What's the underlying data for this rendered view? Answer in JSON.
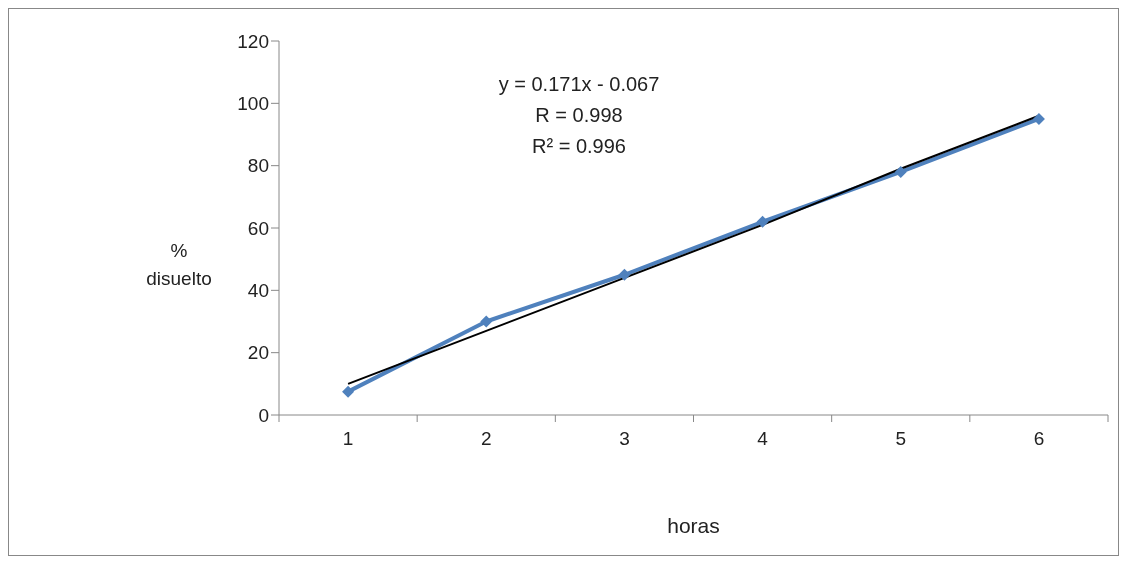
{
  "chart_data": {
    "type": "line",
    "xlabel": "horas",
    "ylabel": "%\ndisuelto",
    "annotations": [
      "y = 0.171x - 0.067",
      "R = 0.998",
      "R² = 0.996"
    ],
    "categories": [
      "1",
      "2",
      "3",
      "4",
      "5",
      "6"
    ],
    "series": [
      {
        "color": "#4f81bd",
        "values": [
          7.5,
          30,
          45,
          62,
          78,
          95
        ]
      },
      {
        "type": "line",
        "color": "#000000",
        "marker": "none",
        "values": [
          10,
          27,
          44,
          61,
          79,
          96
        ]
      }
    ],
    "ylim": [
      0,
      120
    ],
    "yticks": [
      0,
      20,
      40,
      60,
      80,
      100,
      120
    ],
    "marker": "diamond",
    "line_style": "solid"
  }
}
